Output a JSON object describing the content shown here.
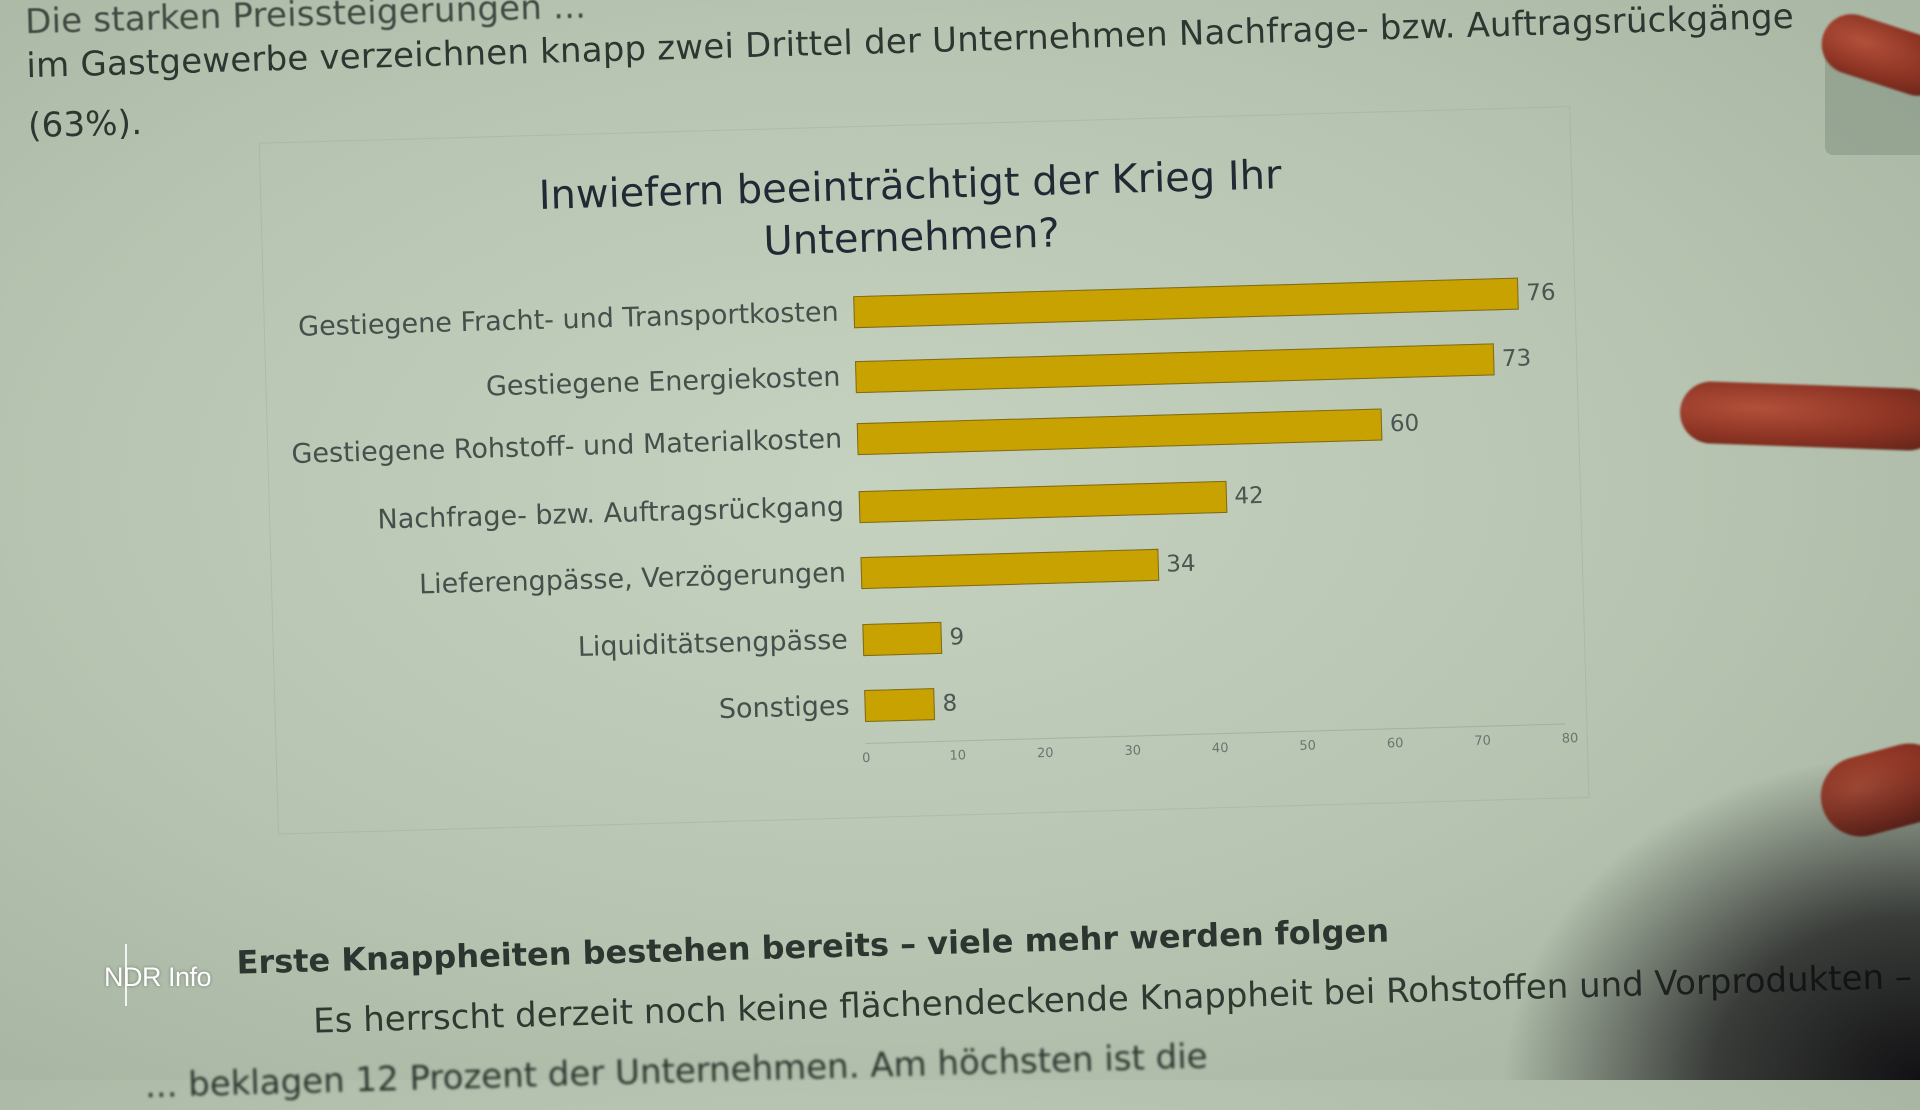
{
  "document": {
    "paragraph_lines": [
      "Die starken Preissteigerungen ...",
      "im Gastgewerbe verzeichnen knapp zwei Drittel der Unternehmen Nachfrage- bzw. Auftragsrückgänge",
      "(63%)."
    ],
    "section_heading": "Erste Knappheiten bestehen bereits – viele mehr werden folgen",
    "body_lines": [
      "Es herrscht derzeit noch keine flächendeckende Knappheit bei Rohstoffen und Vorprodukten –",
      "... beklagen 12 Prozent der Unternehmen. Am höchsten ist die"
    ]
  },
  "overlay": {
    "channel_logo": "NDR Info"
  },
  "chart_data": {
    "type": "bar",
    "orientation": "horizontal",
    "title": "Inwiefern beeinträchtigt der Krieg Ihr Unternehmen?",
    "title_lines": [
      "Inwiefern beeinträchtigt der Krieg Ihr",
      "Unternehmen?"
    ],
    "categories": [
      "Gestiegene Fracht- und Transportkosten",
      "Gestiegene Energiekosten",
      "Gestiegene Rohstoff- und Materialkosten",
      "Nachfrage- bzw. Auftragsrückgang",
      "Lieferengpässe, Verzögerungen",
      "Liquiditätsengpässe",
      "Sonstiges"
    ],
    "values": [
      76,
      73,
      60,
      42,
      34,
      9,
      8
    ],
    "value_labels": [
      "76",
      "73",
      "60",
      "42",
      "34",
      "9",
      "8"
    ],
    "xlabel": "",
    "ylabel": "",
    "xlim": [
      0,
      80
    ],
    "xticks": [
      "0",
      "10",
      "20",
      "30",
      "40",
      "50",
      "60",
      "70",
      "80"
    ],
    "grid": false,
    "legend": null,
    "bar_color": "#c8a200"
  }
}
